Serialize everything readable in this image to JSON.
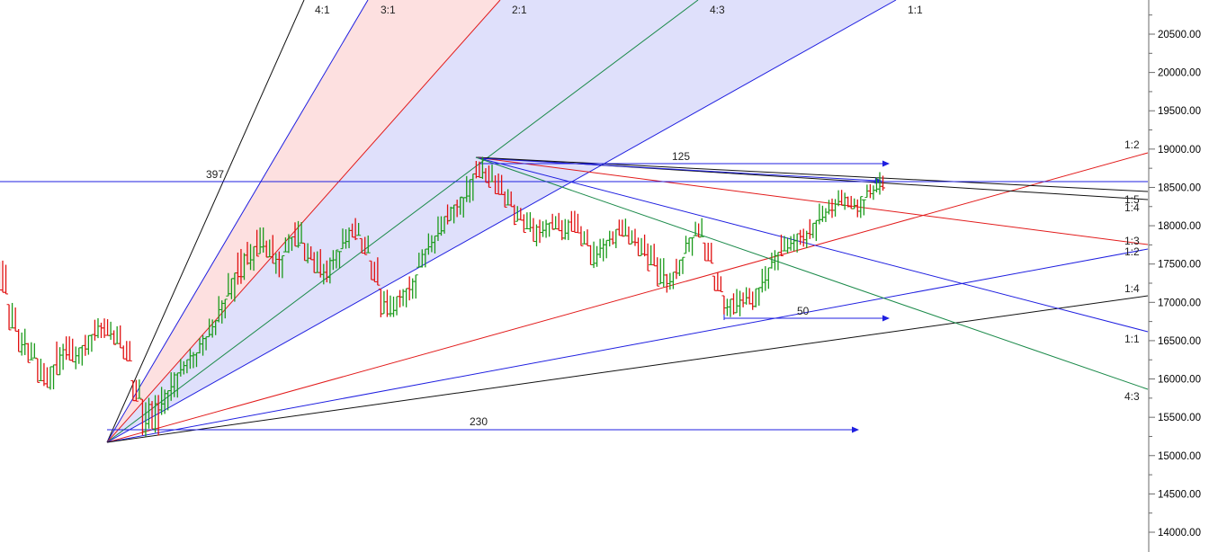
{
  "chart_data": {
    "type": "bar",
    "subtype": "ohlc-with-gann-fans",
    "ylim": [
      13880,
      20870
    ],
    "y_ticks": [
      "20500.00",
      "20000.00",
      "19500.00",
      "19000.00",
      "18500.00",
      "18000.00",
      "17500.00",
      "17000.00",
      "16500.00",
      "16000.00",
      "15500.00",
      "15000.00",
      "14500.00",
      "14000.00"
    ],
    "grid": false,
    "colors": {
      "up": "#1a9a1a",
      "down": "#e01010",
      "blue": "#1f1fe0",
      "red": "#e21b1b",
      "black": "#111111",
      "green": "#1b8a4a",
      "fill_red": "#fde0e0",
      "fill_blue": "#dfe0fb"
    },
    "top_fan_labels": [
      "4:1",
      "3:1",
      "2:1",
      "4:3",
      "1:1"
    ],
    "right_fan_labels": [
      "1:2",
      "1:5",
      "1:4",
      "1:3",
      "1:2",
      "1:4",
      "1:1",
      "4:3"
    ],
    "measure_labels": [
      "397",
      "125",
      "50",
      "230"
    ],
    "horizontal_level": 18575,
    "ohlc_ranges": [
      [
        17100,
        17600
      ],
      [
        16600,
        17000
      ],
      [
        16300,
        16700
      ],
      [
        16200,
        16500
      ],
      [
        15900,
        16300
      ],
      [
        15800,
        16200
      ],
      [
        16000,
        16500
      ],
      [
        16200,
        16600
      ],
      [
        16100,
        16500
      ],
      [
        16300,
        16600
      ],
      [
        16500,
        16800
      ],
      [
        16500,
        16800
      ],
      [
        16400,
        16700
      ],
      [
        16200,
        16500
      ],
      [
        15700,
        16000
      ],
      [
        15250,
        15800
      ],
      [
        15250,
        15800
      ],
      [
        15500,
        15900
      ],
      [
        15700,
        16200
      ],
      [
        16000,
        16300
      ],
      [
        16100,
        16400
      ],
      [
        16300,
        16600
      ],
      [
        16500,
        16800
      ],
      [
        16700,
        17100
      ],
      [
        17000,
        17400
      ],
      [
        17200,
        17700
      ],
      [
        17400,
        17800
      ],
      [
        17600,
        18000
      ],
      [
        17500,
        17900
      ],
      [
        17300,
        17700
      ],
      [
        17600,
        17900
      ],
      [
        17700,
        18100
      ],
      [
        17500,
        17800
      ],
      [
        17300,
        17700
      ],
      [
        17200,
        17600
      ],
      [
        17400,
        17700
      ],
      [
        17700,
        18000
      ],
      [
        17800,
        18100
      ],
      [
        17600,
        17900
      ],
      [
        17200,
        17600
      ],
      [
        16800,
        17200
      ],
      [
        16800,
        17100
      ],
      [
        16900,
        17200
      ],
      [
        17000,
        17400
      ],
      [
        17400,
        17700
      ],
      [
        17600,
        17900
      ],
      [
        17800,
        18200
      ],
      [
        18000,
        18300
      ],
      [
        18100,
        18400
      ],
      [
        18300,
        18700
      ],
      [
        18600,
        18900
      ],
      [
        18500,
        18800
      ],
      [
        18400,
        18700
      ],
      [
        18200,
        18500
      ],
      [
        18000,
        18300
      ],
      [
        17900,
        18200
      ],
      [
        17700,
        18100
      ],
      [
        17800,
        18100
      ],
      [
        17900,
        18200
      ],
      [
        17800,
        18100
      ],
      [
        17900,
        18200
      ],
      [
        17700,
        18000
      ],
      [
        17400,
        17800
      ],
      [
        17500,
        17900
      ],
      [
        17700,
        18000
      ],
      [
        17800,
        18100
      ],
      [
        17700,
        18000
      ],
      [
        17600,
        17900
      ],
      [
        17400,
        17800
      ],
      [
        17200,
        17600
      ],
      [
        17100,
        17400
      ],
      [
        17300,
        17600
      ],
      [
        17600,
        17900
      ],
      [
        17800,
        18100
      ],
      [
        17500,
        17800
      ],
      [
        17100,
        17400
      ],
      [
        16800,
        17100
      ],
      [
        16800,
        17200
      ],
      [
        16900,
        17200
      ],
      [
        16900,
        17200
      ],
      [
        17100,
        17500
      ],
      [
        17400,
        17700
      ],
      [
        17600,
        17900
      ],
      [
        17600,
        17900
      ],
      [
        17700,
        18000
      ],
      [
        17800,
        18100
      ],
      [
        18000,
        18300
      ],
      [
        18100,
        18400
      ],
      [
        18200,
        18500
      ],
      [
        18200,
        18400
      ],
      [
        18100,
        18400
      ],
      [
        18300,
        18600
      ],
      [
        18400,
        18700
      ]
    ]
  }
}
